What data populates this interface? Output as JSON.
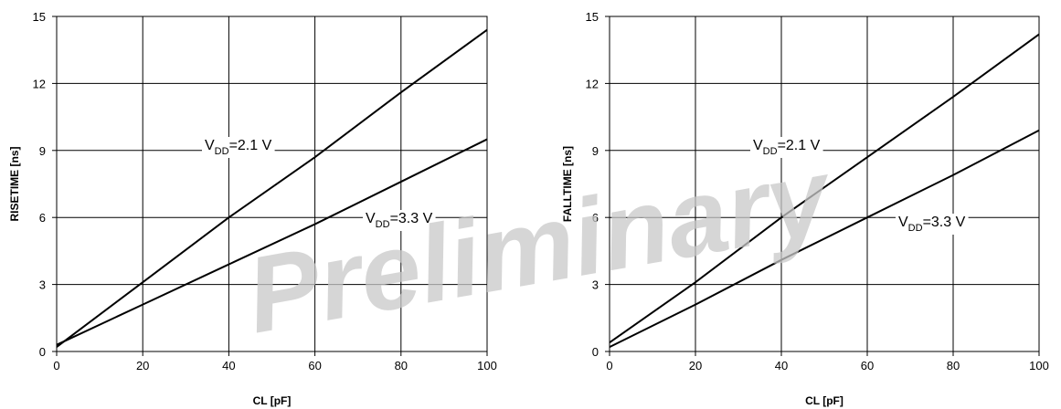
{
  "watermark": "Preliminary",
  "chart_data": [
    {
      "type": "line",
      "xlabel": "CL [pF]",
      "ylabel": "RISETIME [ns]",
      "xlim": [
        0,
        100
      ],
      "ylim": [
        0,
        15
      ],
      "xticks": [
        "0",
        "20",
        "40",
        "60",
        "80",
        "100"
      ],
      "yticks": [
        "0",
        "3",
        "6",
        "9",
        "12",
        "15"
      ],
      "grid": true,
      "series": [
        {
          "name": "VDD=2.1 V",
          "label_main": "V",
          "label_sub": "DD",
          "label_rest": "=2.1 V",
          "x": [
            0,
            20,
            40,
            60,
            80,
            100
          ],
          "y": [
            0.2,
            3.1,
            6.0,
            8.7,
            11.6,
            14.4
          ]
        },
        {
          "name": "VDD=3.3 V",
          "label_main": "V",
          "label_sub": "DD",
          "label_rest": "=3.3 V",
          "x": [
            0,
            20,
            40,
            60,
            80,
            100
          ],
          "y": [
            0.3,
            2.1,
            3.9,
            5.7,
            7.6,
            9.5
          ]
        }
      ]
    },
    {
      "type": "line",
      "xlabel": "CL [pF]",
      "ylabel": "FALLTIME [ns]",
      "xlim": [
        0,
        100
      ],
      "ylim": [
        0,
        15
      ],
      "xticks": [
        "0",
        "20",
        "40",
        "60",
        "80",
        "100"
      ],
      "yticks": [
        "0",
        "3",
        "6",
        "9",
        "12",
        "15"
      ],
      "grid": true,
      "series": [
        {
          "name": "VDD=2.1 V",
          "label_main": "V",
          "label_sub": "DD",
          "label_rest": "=2.1 V",
          "x": [
            0,
            20,
            40,
            60,
            80,
            100
          ],
          "y": [
            0.4,
            3.1,
            6.0,
            8.7,
            11.4,
            14.2
          ]
        },
        {
          "name": "VDD=3.3 V",
          "label_main": "V",
          "label_sub": "DD",
          "label_rest": "=3.3 V",
          "x": [
            0,
            20,
            40,
            60,
            80,
            100
          ],
          "y": [
            0.2,
            2.1,
            4.1,
            6.0,
            7.9,
            9.9
          ]
        }
      ]
    }
  ]
}
